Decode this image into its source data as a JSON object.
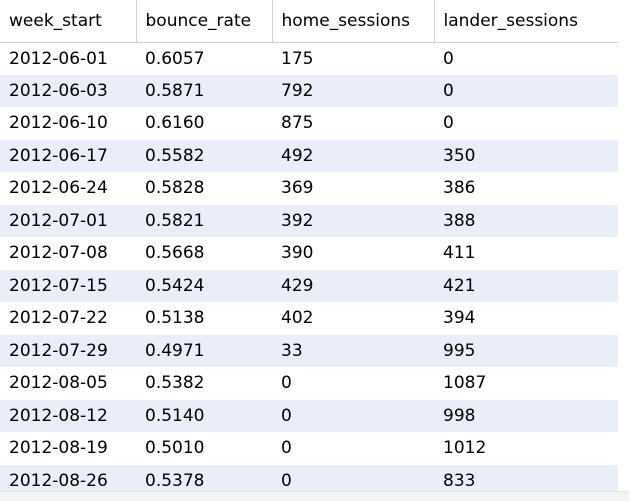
{
  "results_grid": {
    "columns": [
      "week_start",
      "bounce_rate",
      "home_sessions",
      "lander_sessions"
    ],
    "rows": [
      [
        "2012-06-01",
        "0.6057",
        "175",
        "0"
      ],
      [
        "2012-06-03",
        "0.5871",
        "792",
        "0"
      ],
      [
        "2012-06-10",
        "0.6160",
        "875",
        "0"
      ],
      [
        "2012-06-17",
        "0.5582",
        "492",
        "350"
      ],
      [
        "2012-06-24",
        "0.5828",
        "369",
        "386"
      ],
      [
        "2012-07-01",
        "0.5821",
        "392",
        "388"
      ],
      [
        "2012-07-08",
        "0.5668",
        "390",
        "411"
      ],
      [
        "2012-07-15",
        "0.5424",
        "429",
        "421"
      ],
      [
        "2012-07-22",
        "0.5138",
        "402",
        "394"
      ],
      [
        "2012-07-29",
        "0.4971",
        "33",
        "995"
      ],
      [
        "2012-08-05",
        "0.5382",
        "0",
        "1087"
      ],
      [
        "2012-08-12",
        "0.5140",
        "0",
        "998"
      ],
      [
        "2012-08-19",
        "0.5010",
        "0",
        "1012"
      ],
      [
        "2012-08-26",
        "0.5378",
        "0",
        "833"
      ]
    ],
    "colors": {
      "row_even": "#ffffff",
      "row_odd": "#e9eef8",
      "header_bg": "#ffffff",
      "text": "#000000"
    }
  }
}
